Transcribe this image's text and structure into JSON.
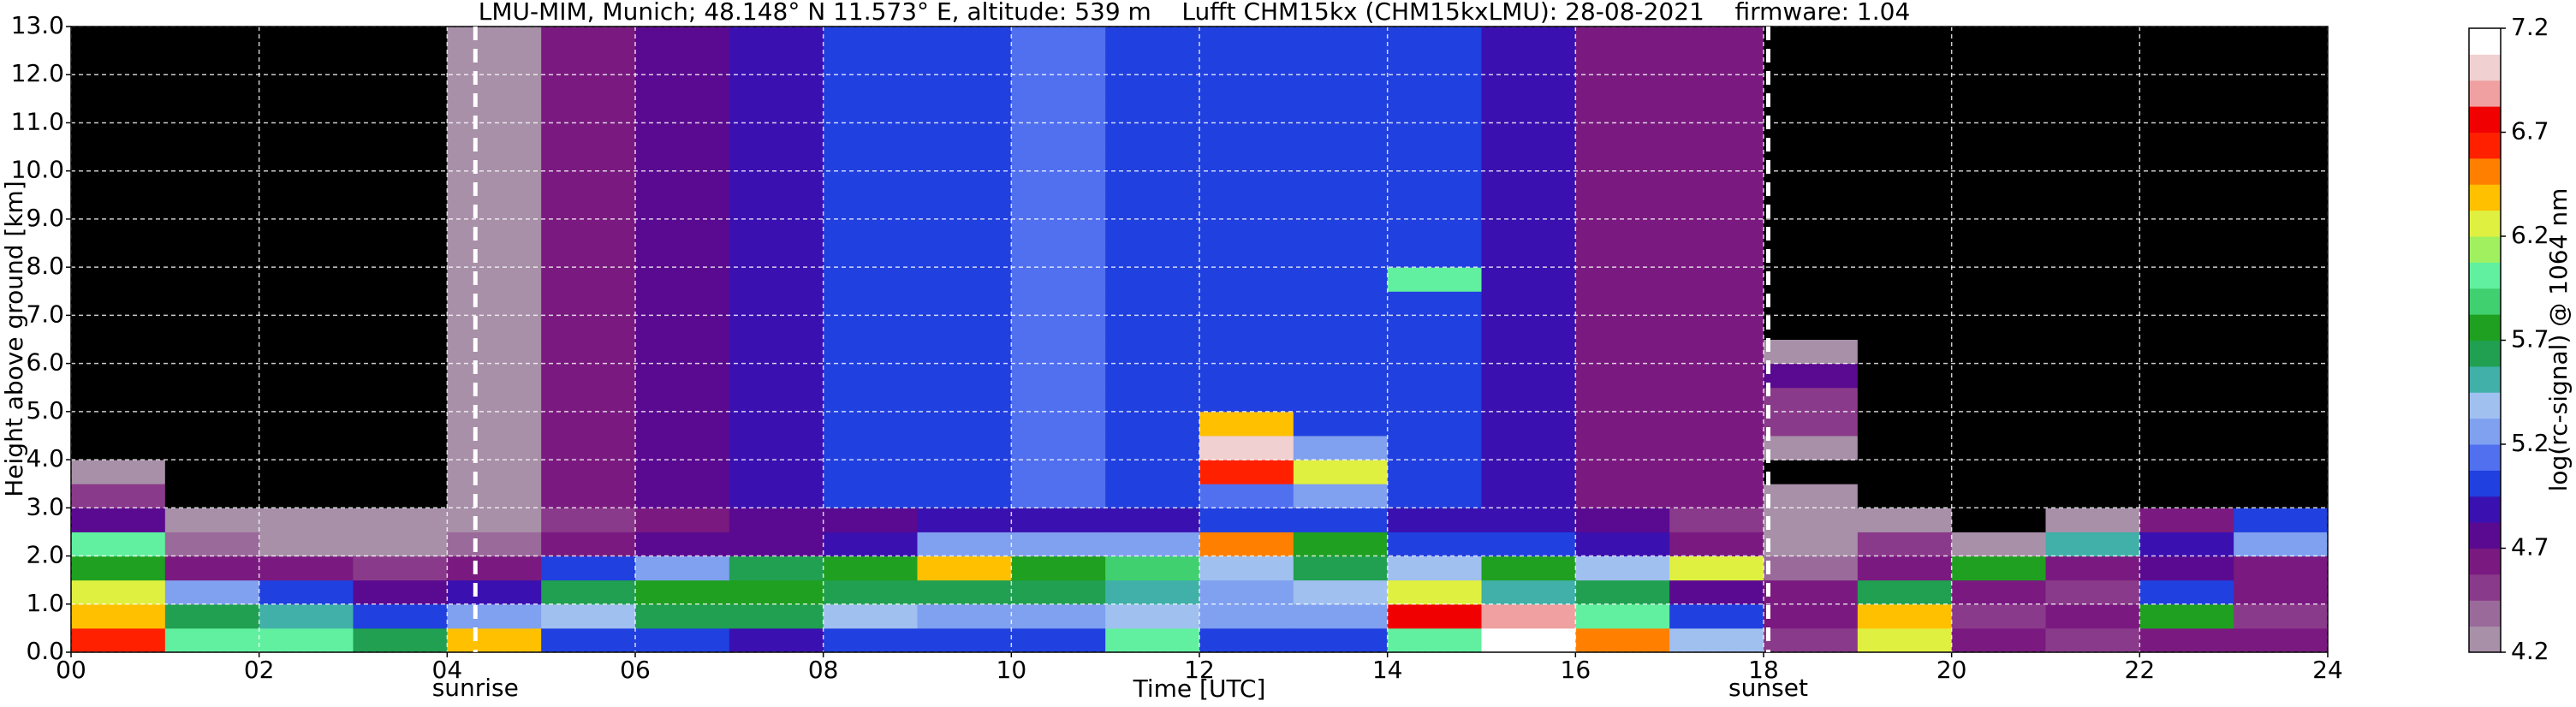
{
  "chart_data": {
    "type": "heatmap",
    "title": "LMU-MIM, Munich; 48.148° N 11.573° E, altitude: 539 m    Lufft CHM15kx (CHM15kxLMU): 28-08-2021    firmware: 1.04",
    "x_label": "Time [UTC]",
    "y_label": "Height above ground [km]",
    "xlim": [
      0,
      24
    ],
    "ylim": [
      0,
      13
    ],
    "xticks": [
      {
        "value": 0,
        "label": "00"
      },
      {
        "value": 2,
        "label": "02"
      },
      {
        "value": 4,
        "label": "04"
      },
      {
        "value": 6,
        "label": "06"
      },
      {
        "value": 8,
        "label": "08"
      },
      10,
      12,
      14,
      16,
      18,
      20,
      22,
      24
    ],
    "yticks": [
      {
        "value": 0,
        "label": "0.0"
      },
      {
        "value": 1,
        "label": "1.0"
      },
      {
        "value": 2,
        "label": "2.0"
      },
      {
        "value": 3,
        "label": "3.0"
      },
      {
        "value": 4,
        "label": "4.0"
      },
      {
        "value": 5,
        "label": "5.0"
      },
      {
        "value": 6,
        "label": "6.0"
      },
      {
        "value": 7,
        "label": "7.0"
      },
      {
        "value": 8,
        "label": "8.0"
      },
      {
        "value": 9,
        "label": "9.0"
      },
      {
        "value": 10,
        "label": "10.0"
      },
      {
        "value": 11,
        "label": "11.0"
      },
      {
        "value": 12,
        "label": "12.0"
      },
      {
        "value": 13,
        "label": "13.0"
      }
    ],
    "grid": true,
    "annotations": [
      {
        "x": 4.3,
        "label": "sunrise"
      },
      {
        "x": 18.05,
        "label": "sunset"
      }
    ],
    "x_edges": [
      0,
      1,
      2,
      3,
      4,
      5,
      6,
      7,
      8,
      9,
      10,
      11,
      12,
      13,
      14,
      15,
      16,
      17,
      18,
      19,
      20,
      21,
      22,
      23,
      24
    ],
    "y_edges": [
      0,
      0.5,
      1,
      1.5,
      2,
      2.5,
      3,
      3.5,
      4,
      4.5,
      5,
      5.5,
      6,
      6.5,
      7,
      7.5,
      8,
      8.5,
      9,
      9.5,
      10,
      10.5,
      11,
      11.5,
      12,
      12.5,
      13
    ],
    "z": [
      [
        6.6,
        6.4,
        6.2,
        5.8,
        6.0,
        4.8,
        4.5,
        4.3,
        4.0,
        4.0,
        4.0,
        4.0,
        4.0,
        4.0,
        4.0,
        4.0,
        4.0,
        4.0,
        4.0,
        4.0,
        4.0,
        4.0,
        4.0,
        4.0,
        4.0,
        4.0
      ],
      [
        6.0,
        5.6,
        5.2,
        4.6,
        4.4,
        4.3,
        4.1,
        4.0,
        4.0,
        4.0,
        4.0,
        4.0,
        4.0,
        4.0,
        4.0,
        4.0,
        4.0,
        4.0,
        4.0,
        4.0,
        4.0,
        4.0,
        4.0,
        4.0,
        4.0,
        4.0
      ],
      [
        6.0,
        5.5,
        5.0,
        4.6,
        4.3,
        4.2,
        4.1,
        4.0,
        4.0,
        4.0,
        4.0,
        4.0,
        4.0,
        4.0,
        4.0,
        4.0,
        4.0,
        4.0,
        4.0,
        4.0,
        4.0,
        4.0,
        4.0,
        4.0,
        4.0,
        4.0
      ],
      [
        5.6,
        5.0,
        4.8,
        4.5,
        4.3,
        4.2,
        4.1,
        4.0,
        4.0,
        4.0,
        4.0,
        4.0,
        4.0,
        4.0,
        4.0,
        4.0,
        4.0,
        4.0,
        4.0,
        4.0,
        4.0,
        4.0,
        4.0,
        4.0,
        4.0,
        4.0
      ],
      [
        6.4,
        5.2,
        4.9,
        4.6,
        4.4,
        4.3,
        4.3,
        4.2,
        4.2,
        4.2,
        4.2,
        4.2,
        4.2,
        4.2,
        4.2,
        4.2,
        4.2,
        4.2,
        4.2,
        4.2,
        4.2,
        4.2,
        4.2,
        4.2,
        4.2,
        4.2
      ],
      [
        5.0,
        5.4,
        5.6,
        5.0,
        4.6,
        4.5,
        4.6,
        4.6,
        4.6,
        4.6,
        4.6,
        4.6,
        4.6,
        4.6,
        4.6,
        4.6,
        4.6,
        4.6,
        4.6,
        4.6,
        4.6,
        4.6,
        4.6,
        4.6,
        4.6,
        4.6
      ],
      [
        5.0,
        5.6,
        5.8,
        5.3,
        4.7,
        4.6,
        4.8,
        4.8,
        4.8,
        4.8,
        4.8,
        4.8,
        4.8,
        4.8,
        4.8,
        4.8,
        4.8,
        4.8,
        4.8,
        4.8,
        4.8,
        4.8,
        4.8,
        4.8,
        4.8,
        4.8
      ],
      [
        4.9,
        5.6,
        5.8,
        5.6,
        4.8,
        4.7,
        4.9,
        4.9,
        4.9,
        4.9,
        4.9,
        4.9,
        4.9,
        4.9,
        4.9,
        4.9,
        4.9,
        4.9,
        4.9,
        4.9,
        4.9,
        4.9,
        4.9,
        4.9,
        4.9,
        4.9
      ],
      [
        5.0,
        5.4,
        5.6,
        5.8,
        4.9,
        4.8,
        5.0,
        5.0,
        5.0,
        5.0,
        5.0,
        5.0,
        5.0,
        5.0,
        5.0,
        5.0,
        5.0,
        5.0,
        5.0,
        5.0,
        5.0,
        5.0,
        5.0,
        5.0,
        5.0,
        5.0
      ],
      [
        5.0,
        5.3,
        5.6,
        6.4,
        5.2,
        4.9,
        5.0,
        5.0,
        5.0,
        5.0,
        5.0,
        5.0,
        5.0,
        5.0,
        5.0,
        5.0,
        5.0,
        5.0,
        5.0,
        5.0,
        5.0,
        5.0,
        5.0,
        5.0,
        5.0,
        5.0
      ],
      [
        5.0,
        5.2,
        5.6,
        5.8,
        5.2,
        4.9,
        5.1,
        5.1,
        5.1,
        5.1,
        5.1,
        5.1,
        5.1,
        5.1,
        5.1,
        5.1,
        5.1,
        5.1,
        5.1,
        5.1,
        5.1,
        5.1,
        5.1,
        5.1,
        5.1,
        5.1
      ],
      [
        6.0,
        5.4,
        5.5,
        5.9,
        5.2,
        4.9,
        5.0,
        5.0,
        5.0,
        5.0,
        5.0,
        5.0,
        5.0,
        5.0,
        5.0,
        5.0,
        5.0,
        5.0,
        5.0,
        5.0,
        5.0,
        5.0,
        5.0,
        5.0,
        5.0,
        5.0
      ],
      [
        5.0,
        5.2,
        5.3,
        5.4,
        6.5,
        5.0,
        5.1,
        6.6,
        7.0,
        6.4,
        5.0,
        5.0,
        5.0,
        5.0,
        5.0,
        5.0,
        5.0,
        5.0,
        5.0,
        5.0,
        5.0,
        5.0,
        5.0,
        5.0,
        5.0,
        5.0
      ],
      [
        5.0,
        5.2,
        5.4,
        5.6,
        5.8,
        5.0,
        5.2,
        6.2,
        5.3,
        5.0,
        5.0,
        5.0,
        5.0,
        5.0,
        5.0,
        5.0,
        5.0,
        5.0,
        5.0,
        5.0,
        5.0,
        5.0,
        5.0,
        5.0,
        5.0,
        5.0
      ],
      [
        6.0,
        6.8,
        6.2,
        5.4,
        5.0,
        4.9,
        5.0,
        5.0,
        5.0,
        5.0,
        5.0,
        5.0,
        5.0,
        5.0,
        5.0,
        6.0,
        5.0,
        5.0,
        5.0,
        5.0,
        5.0,
        5.0,
        5.0,
        5.0,
        5.0,
        5.0
      ],
      [
        7.1,
        6.9,
        5.5,
        5.8,
        5.0,
        4.9,
        4.9,
        4.9,
        4.9,
        4.9,
        4.9,
        4.9,
        4.9,
        4.9,
        4.9,
        4.9,
        4.9,
        4.9,
        4.9,
        4.9,
        4.9,
        4.9,
        4.9,
        4.9,
        4.9,
        4.9
      ],
      [
        6.5,
        6.0,
        5.6,
        5.4,
        4.9,
        4.7,
        4.6,
        4.6,
        4.6,
        4.6,
        4.6,
        4.6,
        4.6,
        4.6,
        4.6,
        4.6,
        4.6,
        4.6,
        4.6,
        4.6,
        4.6,
        4.6,
        4.6,
        4.6,
        4.6,
        4.6
      ],
      [
        5.4,
        5.0,
        4.8,
        6.2,
        4.6,
        4.5,
        4.6,
        4.6,
        4.6,
        4.6,
        4.6,
        4.6,
        4.6,
        4.6,
        4.6,
        4.6,
        4.6,
        4.6,
        4.6,
        4.6,
        4.6,
        4.6,
        4.6,
        4.6,
        4.6,
        4.6
      ],
      [
        4.5,
        4.6,
        4.6,
        4.4,
        4.3,
        4.2,
        4.2,
        4.1,
        4.2,
        4.5,
        4.5,
        4.8,
        4.2,
        4.1,
        4.1,
        4.1,
        4.1,
        4.1,
        4.1,
        4.1,
        4.1,
        4.1,
        4.1,
        4.1,
        4.1,
        4.1
      ],
      [
        6.2,
        6.4,
        5.6,
        4.6,
        4.5,
        4.2,
        4.1,
        4.0,
        4.0,
        4.0,
        4.0,
        4.0,
        4.0,
        4.0,
        4.0,
        4.0,
        4.0,
        4.0,
        4.0,
        4.0,
        4.0,
        4.0,
        4.0,
        4.0,
        4.0,
        4.0
      ],
      [
        4.6,
        4.5,
        4.6,
        5.8,
        4.3,
        4.1,
        4.0,
        4.0,
        4.0,
        4.0,
        4.0,
        4.0,
        4.0,
        4.0,
        4.0,
        4.0,
        4.0,
        4.0,
        4.0,
        4.0,
        4.0,
        4.0,
        4.0,
        4.0,
        4.0,
        4.0
      ],
      [
        4.5,
        4.6,
        4.5,
        4.6,
        5.5,
        4.2,
        4.0,
        4.0,
        4.0,
        4.0,
        4.0,
        4.0,
        4.0,
        4.0,
        4.0,
        4.0,
        4.0,
        4.0,
        4.0,
        4.0,
        4.0,
        4.0,
        4.0,
        4.0,
        4.0,
        4.0
      ],
      [
        4.6,
        5.8,
        5.0,
        4.8,
        4.9,
        4.6,
        4.0,
        4.0,
        4.0,
        4.0,
        4.0,
        4.0,
        4.0,
        4.0,
        4.0,
        4.0,
        4.0,
        4.0,
        4.0,
        4.0,
        4.0,
        4.0,
        4.0,
        4.0,
        4.0,
        4.0
      ],
      [
        4.6,
        4.5,
        4.6,
        4.6,
        5.2,
        5.0,
        4.1,
        4.0,
        4.0,
        4.0,
        4.0,
        4.0,
        4.0,
        4.0,
        4.0,
        4.0,
        4.0,
        4.0,
        4.0,
        4.0,
        4.0,
        4.0,
        4.0,
        4.0,
        4.0,
        4.0
      ]
    ],
    "colorbar": {
      "label": "log(rc-signal) @ 1064 nm",
      "lim": [
        4.2,
        7.2
      ],
      "ticks": [
        4.2,
        4.7,
        5.2,
        5.7,
        6.2,
        6.7,
        7.2
      ],
      "under_color": "#000000",
      "colors": [
        "#a890a8",
        "#9a6a9a",
        "#8a3a8a",
        "#7a1a80",
        "#5a0a90",
        "#3a10b0",
        "#2040e0",
        "#5070f0",
        "#80a0f0",
        "#a0c0f0",
        "#40b0a8",
        "#20a050",
        "#20a020",
        "#40d070",
        "#60f0a0",
        "#a0f060",
        "#e0f040",
        "#ffc000",
        "#ff8000",
        "#ff2000",
        "#f00000",
        "#f0a0a0",
        "#f0d0d0",
        "#ffffff"
      ]
    }
  }
}
